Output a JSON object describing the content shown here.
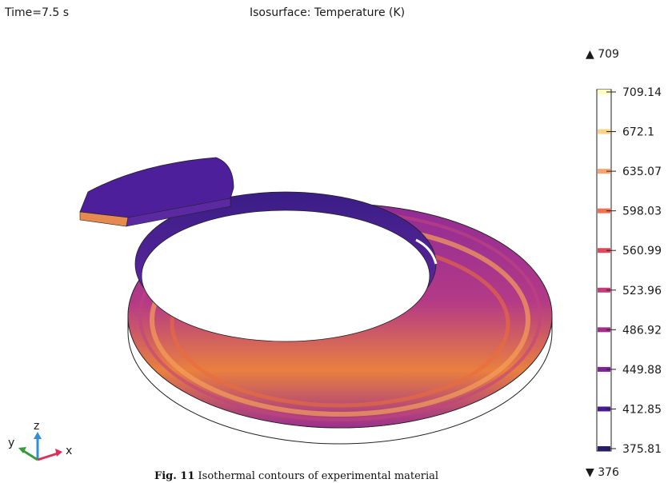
{
  "header": {
    "time_label": "Time=7.5 s",
    "plot_title": "Isosurface: Temperature (K)"
  },
  "colorbar": {
    "max_marker": "▲ 709",
    "min_marker": "▼ 376",
    "ticks": [
      "709.14",
      "672.1",
      "635.07",
      "598.03",
      "560.99",
      "523.96",
      "486.92",
      "449.88",
      "412.85",
      "375.81"
    ],
    "tick_colors": [
      "#fcfdbf",
      "#fed186",
      "#fea16e",
      "#f4704f",
      "#e04a5c",
      "#c63b79",
      "#a32f8a",
      "#7c2596",
      "#4b1c8f",
      "#2a1c68"
    ]
  },
  "axes_triad": {
    "y_label": "y",
    "z_label": "z",
    "x_label": "x"
  },
  "caption": {
    "fig_label": "Fig. 11",
    "text": "Isothermal contours of experimental material"
  }
}
